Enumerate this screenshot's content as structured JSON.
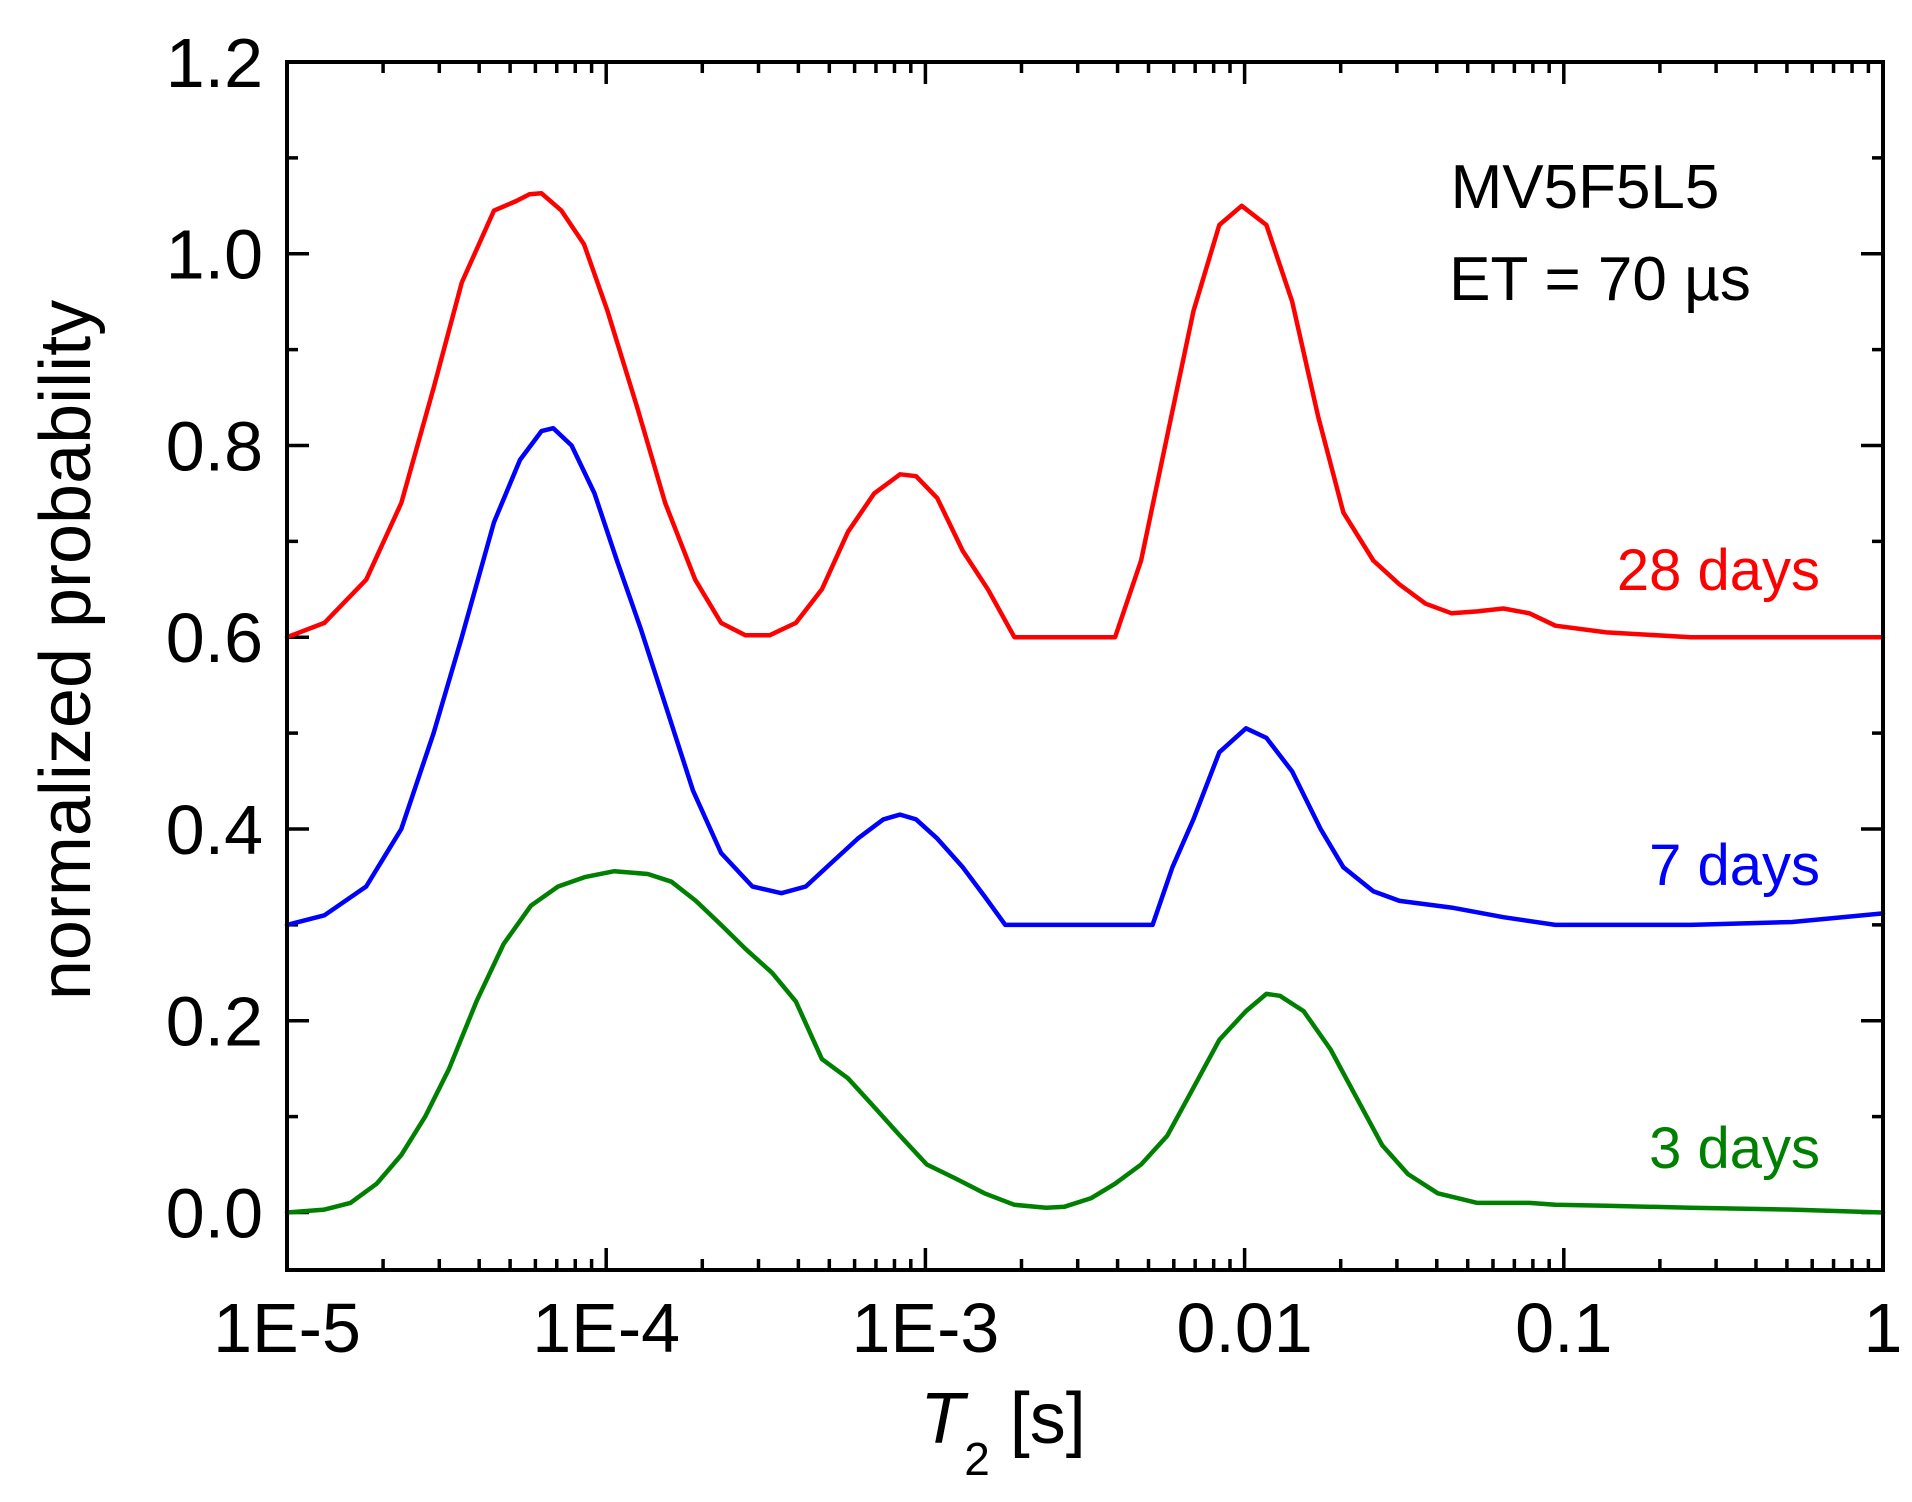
{
  "chart_data": {
    "type": "line",
    "title": "",
    "annotations": [
      "MV5F5L5",
      "ET = 70 µs"
    ],
    "xlabel": {
      "main": "T",
      "subscript": "2",
      "unit": " [s]"
    },
    "ylabel": "normalized probability",
    "xscale": "log",
    "xlim": [
      1e-05,
      1
    ],
    "ylim": [
      -0.06,
      1.2
    ],
    "x_ticks": [
      {
        "value": 1e-05,
        "label": "1E-5"
      },
      {
        "value": 0.0001,
        "label": "1E-4"
      },
      {
        "value": 0.001,
        "label": "1E-3"
      },
      {
        "value": 0.01,
        "label": "0.01"
      },
      {
        "value": 0.1,
        "label": "0.1"
      },
      {
        "value": 1,
        "label": "1"
      }
    ],
    "y_ticks": [
      {
        "value": 0.0,
        "label": "0.0"
      },
      {
        "value": 0.2,
        "label": "0.2"
      },
      {
        "value": 0.4,
        "label": "0.4"
      },
      {
        "value": 0.6,
        "label": "0.6"
      },
      {
        "value": 0.8,
        "label": "0.8"
      },
      {
        "value": 1.0,
        "label": "1.0"
      },
      {
        "value": 1.2,
        "label": "1.2"
      }
    ],
    "grid": false,
    "legend": "labels at right end of each curve",
    "series": [
      {
        "name": "28 days",
        "color": "#ff0000",
        "points": [
          [
            1e-05,
            0.6
          ],
          [
            1.31e-05,
            0.615
          ],
          [
            1.77e-05,
            0.66
          ],
          [
            2.28e-05,
            0.74
          ],
          [
            2.88e-05,
            0.86
          ],
          [
            3.53e-05,
            0.97
          ],
          [
            4.45e-05,
            1.045
          ],
          [
            5.23e-05,
            1.055
          ],
          [
            5.75e-05,
            1.062
          ],
          [
            6.27e-05,
            1.063
          ],
          [
            7.24e-05,
            1.045
          ],
          [
            8.52e-05,
            1.01
          ],
          [
            0.000101,
            0.94
          ],
          [
            0.000125,
            0.84
          ],
          [
            0.000153,
            0.74
          ],
          [
            0.00019,
            0.66
          ],
          [
            0.000229,
            0.615
          ],
          [
            0.000273,
            0.602
          ],
          [
            0.000325,
            0.602
          ],
          [
            0.000393,
            0.615
          ],
          [
            0.000474,
            0.65
          ],
          [
            0.000572,
            0.71
          ],
          [
            0.000691,
            0.75
          ],
          [
            0.000833,
            0.77
          ],
          [
            0.000935,
            0.768
          ],
          [
            0.00109,
            0.745
          ],
          [
            0.00131,
            0.69
          ],
          [
            0.00157,
            0.65
          ],
          [
            0.0019,
            0.6
          ],
          [
            0.00393,
            0.6
          ],
          [
            0.00474,
            0.68
          ],
          [
            0.00572,
            0.81
          ],
          [
            0.00691,
            0.94
          ],
          [
            0.00833,
            1.03
          ],
          [
            0.00979,
            1.05
          ],
          [
            0.0117,
            1.03
          ],
          [
            0.0141,
            0.95
          ],
          [
            0.017,
            0.83
          ],
          [
            0.0204,
            0.73
          ],
          [
            0.0253,
            0.68
          ],
          [
            0.0306,
            0.655
          ],
          [
            0.0369,
            0.635
          ],
          [
            0.0445,
            0.625
          ],
          [
            0.0536,
            0.627
          ],
          [
            0.0647,
            0.63
          ],
          [
            0.078,
            0.625
          ],
          [
            0.0941,
            0.612
          ],
          [
            0.136,
            0.605
          ],
          [
            0.25,
            0.6
          ],
          [
            1.0,
            0.6
          ]
        ]
      },
      {
        "name": "7 days",
        "color": "#0000ff",
        "points": [
          [
            1e-05,
            0.3
          ],
          [
            1.31e-05,
            0.31
          ],
          [
            1.77e-05,
            0.34
          ],
          [
            2.28e-05,
            0.4
          ],
          [
            2.88e-05,
            0.5
          ],
          [
            3.53e-05,
            0.6
          ],
          [
            4.45e-05,
            0.72
          ],
          [
            5.37e-05,
            0.785
          ],
          [
            6.27e-05,
            0.815
          ],
          [
            6.83e-05,
            0.818
          ],
          [
            7.79e-05,
            0.8
          ],
          [
            9.19e-05,
            0.75
          ],
          [
            0.000108,
            0.68
          ],
          [
            0.000128,
            0.61
          ],
          [
            0.000153,
            0.53
          ],
          [
            0.000187,
            0.44
          ],
          [
            0.000229,
            0.375
          ],
          [
            0.000287,
            0.34
          ],
          [
            0.000354,
            0.333
          ],
          [
            0.000422,
            0.34
          ],
          [
            0.000509,
            0.365
          ],
          [
            0.000614,
            0.39
          ],
          [
            0.000738,
            0.41
          ],
          [
            0.000833,
            0.415
          ],
          [
            0.000935,
            0.41
          ],
          [
            0.00109,
            0.39
          ],
          [
            0.00131,
            0.36
          ],
          [
            0.00153,
            0.33
          ],
          [
            0.00178,
            0.3
          ],
          [
            0.00515,
            0.3
          ],
          [
            0.00594,
            0.36
          ],
          [
            0.00691,
            0.41
          ],
          [
            0.00833,
            0.48
          ],
          [
            0.0101,
            0.505
          ],
          [
            0.0117,
            0.495
          ],
          [
            0.0141,
            0.46
          ],
          [
            0.0173,
            0.4
          ],
          [
            0.0204,
            0.36
          ],
          [
            0.0253,
            0.335
          ],
          [
            0.0306,
            0.325
          ],
          [
            0.0445,
            0.318
          ],
          [
            0.0647,
            0.308
          ],
          [
            0.0941,
            0.3
          ],
          [
            0.25,
            0.3
          ],
          [
            0.52,
            0.303
          ],
          [
            1.0,
            0.312
          ]
        ]
      },
      {
        "name": "3 days",
        "color": "#008000",
        "points": [
          [
            1e-05,
            0.0
          ],
          [
            1.31e-05,
            0.003
          ],
          [
            1.58e-05,
            0.01
          ],
          [
            1.91e-05,
            0.03
          ],
          [
            2.28e-05,
            0.06
          ],
          [
            2.71e-05,
            0.1
          ],
          [
            3.22e-05,
            0.15
          ],
          [
            3.92e-05,
            0.22
          ],
          [
            4.77e-05,
            0.28
          ],
          [
            5.81e-05,
            0.32
          ],
          [
            7.07e-05,
            0.34
          ],
          [
            8.61e-05,
            0.35
          ],
          [
            0.000106,
            0.356
          ],
          [
            0.000135,
            0.353
          ],
          [
            0.00016,
            0.345
          ],
          [
            0.000191,
            0.325
          ],
          [
            0.000229,
            0.3
          ],
          [
            0.000273,
            0.275
          ],
          [
            0.000331,
            0.25
          ],
          [
            0.000393,
            0.22
          ],
          [
            0.000474,
            0.16
          ],
          [
            0.000572,
            0.14
          ],
          [
            0.000691,
            0.11
          ],
          [
            0.000833,
            0.08
          ],
          [
            0.00101,
            0.05
          ],
          [
            0.00125,
            0.035
          ],
          [
            0.00153,
            0.02
          ],
          [
            0.0019,
            0.008
          ],
          [
            0.00239,
            0.005
          ],
          [
            0.00273,
            0.006
          ],
          [
            0.00331,
            0.015
          ],
          [
            0.00393,
            0.03
          ],
          [
            0.00474,
            0.05
          ],
          [
            0.00572,
            0.08
          ],
          [
            0.00691,
            0.13
          ],
          [
            0.00833,
            0.18
          ],
          [
            0.0101,
            0.21
          ],
          [
            0.0117,
            0.228
          ],
          [
            0.0129,
            0.226
          ],
          [
            0.0153,
            0.21
          ],
          [
            0.0186,
            0.17
          ],
          [
            0.0224,
            0.12
          ],
          [
            0.027,
            0.07
          ],
          [
            0.0325,
            0.04
          ],
          [
            0.0403,
            0.02
          ],
          [
            0.0536,
            0.01
          ],
          [
            0.078,
            0.01
          ],
          [
            0.0941,
            0.008
          ],
          [
            0.136,
            0.007
          ],
          [
            0.25,
            0.005
          ],
          [
            0.52,
            0.003
          ],
          [
            1.0,
            0.0
          ]
        ]
      }
    ]
  }
}
